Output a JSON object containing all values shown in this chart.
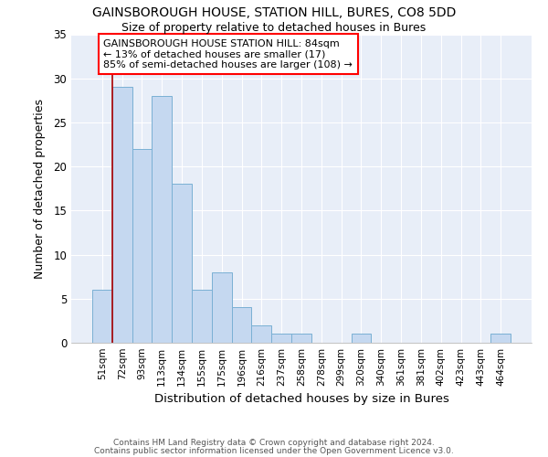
{
  "title1": "GAINSBOROUGH HOUSE, STATION HILL, BURES, CO8 5DD",
  "title2": "Size of property relative to detached houses in Bures",
  "xlabel": "Distribution of detached houses by size in Bures",
  "ylabel": "Number of detached properties",
  "categories": [
    "51sqm",
    "72sqm",
    "93sqm",
    "113sqm",
    "134sqm",
    "155sqm",
    "175sqm",
    "196sqm",
    "216sqm",
    "237sqm",
    "258sqm",
    "278sqm",
    "299sqm",
    "320sqm",
    "340sqm",
    "361sqm",
    "381sqm",
    "402sqm",
    "423sqm",
    "443sqm",
    "464sqm"
  ],
  "values": [
    6,
    29,
    22,
    28,
    18,
    6,
    8,
    4,
    2,
    1,
    1,
    0,
    0,
    1,
    0,
    0,
    0,
    0,
    0,
    0,
    1
  ],
  "bar_color": "#c5d8f0",
  "bar_edge_color": "#7ab0d4",
  "red_line_x": 0.5,
  "annotation_title": "GAINSBOROUGH HOUSE STATION HILL: 84sqm",
  "annotation_line1": "← 13% of detached houses are smaller (17)",
  "annotation_line2": "85% of semi-detached houses are larger (108) →",
  "ylim": [
    0,
    35
  ],
  "yticks": [
    0,
    5,
    10,
    15,
    20,
    25,
    30,
    35
  ],
  "background_color": "#e8eef8",
  "grid_color": "#ffffff",
  "footer1": "Contains HM Land Registry data © Crown copyright and database right 2024.",
  "footer2": "Contains public sector information licensed under the Open Government Licence v3.0."
}
